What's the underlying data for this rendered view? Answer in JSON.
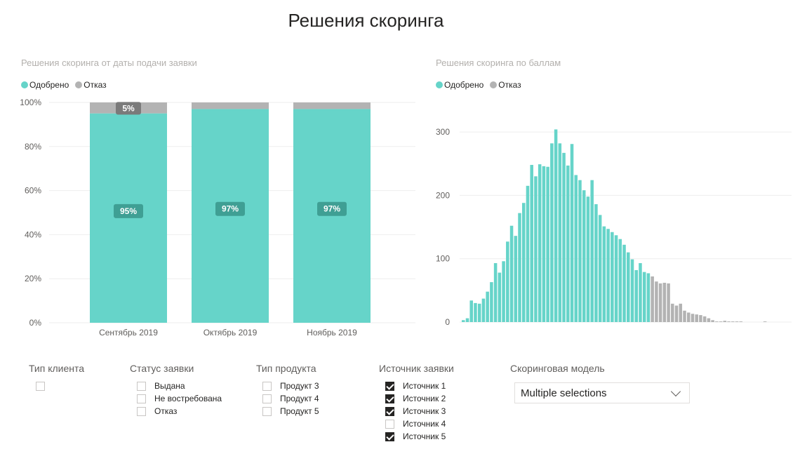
{
  "page_title": "Решения скоринга",
  "colors": {
    "approved": "#66d4c9",
    "rejected": "#b3b3b3",
    "label_bg": "#3f9f94",
    "label_bg_gray": "#7a7a7a"
  },
  "legend": {
    "approved": "Одобрено",
    "rejected": "Отказ"
  },
  "chart_data": [
    {
      "type": "bar",
      "title": "Решения скоринга от даты подачи заявки",
      "stacked": "percent",
      "categories": [
        "Сентябрь 2019",
        "Октябрь 2019",
        "Ноябрь 2019"
      ],
      "series": [
        {
          "name": "Одобрено",
          "values": [
            95,
            97,
            97
          ],
          "labels": [
            "95%",
            "97%",
            "97%"
          ]
        },
        {
          "name": "Отказ",
          "values": [
            5,
            3,
            3
          ],
          "labels": [
            "5%",
            "",
            ""
          ]
        }
      ],
      "y_ticks": [
        "0%",
        "20%",
        "40%",
        "60%",
        "80%",
        "100%"
      ],
      "ylim": [
        0,
        100
      ],
      "legend_position": "top-left"
    },
    {
      "type": "bar",
      "title": "Решения скоринга по баллам",
      "y_ticks": [
        "0",
        "100",
        "200",
        "300"
      ],
      "ylim": [
        0,
        320
      ],
      "legend_position": "top-left",
      "approved_values": [
        3,
        6,
        34,
        30,
        29,
        37,
        48,
        63,
        93,
        78,
        96,
        127,
        152,
        136,
        172,
        188,
        215,
        248,
        230,
        249,
        246,
        245,
        282,
        304,
        282,
        267,
        247,
        281,
        232,
        224,
        208,
        198,
        224,
        186,
        169,
        151,
        147,
        142,
        137,
        131,
        122,
        110,
        99,
        82,
        93,
        79,
        77
      ],
      "rejected_values": [
        72,
        64,
        61,
        62,
        61,
        29,
        26,
        29,
        18,
        15,
        13,
        12,
        11,
        9,
        6,
        3,
        1,
        1,
        2,
        1,
        1,
        1,
        1,
        0,
        0,
        0,
        0,
        0,
        1,
        0,
        0,
        0,
        0,
        0,
        0
      ]
    }
  ],
  "slicers": [
    {
      "title": "Тип клиента",
      "options": [
        {
          "label": "",
          "checked": false
        }
      ]
    },
    {
      "title": "Статус заявки",
      "options": [
        {
          "label": "Выдана",
          "checked": false
        },
        {
          "label": "Не востребована",
          "checked": false
        },
        {
          "label": "Отказ",
          "checked": false
        }
      ]
    },
    {
      "title": "Тип продукта",
      "options": [
        {
          "label": "Продукт 3",
          "checked": false
        },
        {
          "label": "Продукт 4",
          "checked": false
        },
        {
          "label": "Продукт 5",
          "checked": false
        }
      ]
    },
    {
      "title": "Источник заявки",
      "options": [
        {
          "label": "Источник 1",
          "checked": true
        },
        {
          "label": "Источник 2",
          "checked": true
        },
        {
          "label": "Источник 3",
          "checked": true
        },
        {
          "label": "Источник 4",
          "checked": false
        },
        {
          "label": "Источник 5",
          "checked": true
        }
      ]
    }
  ],
  "scoring_model": {
    "title": "Скоринговая модель",
    "value": "Multiple selections"
  }
}
